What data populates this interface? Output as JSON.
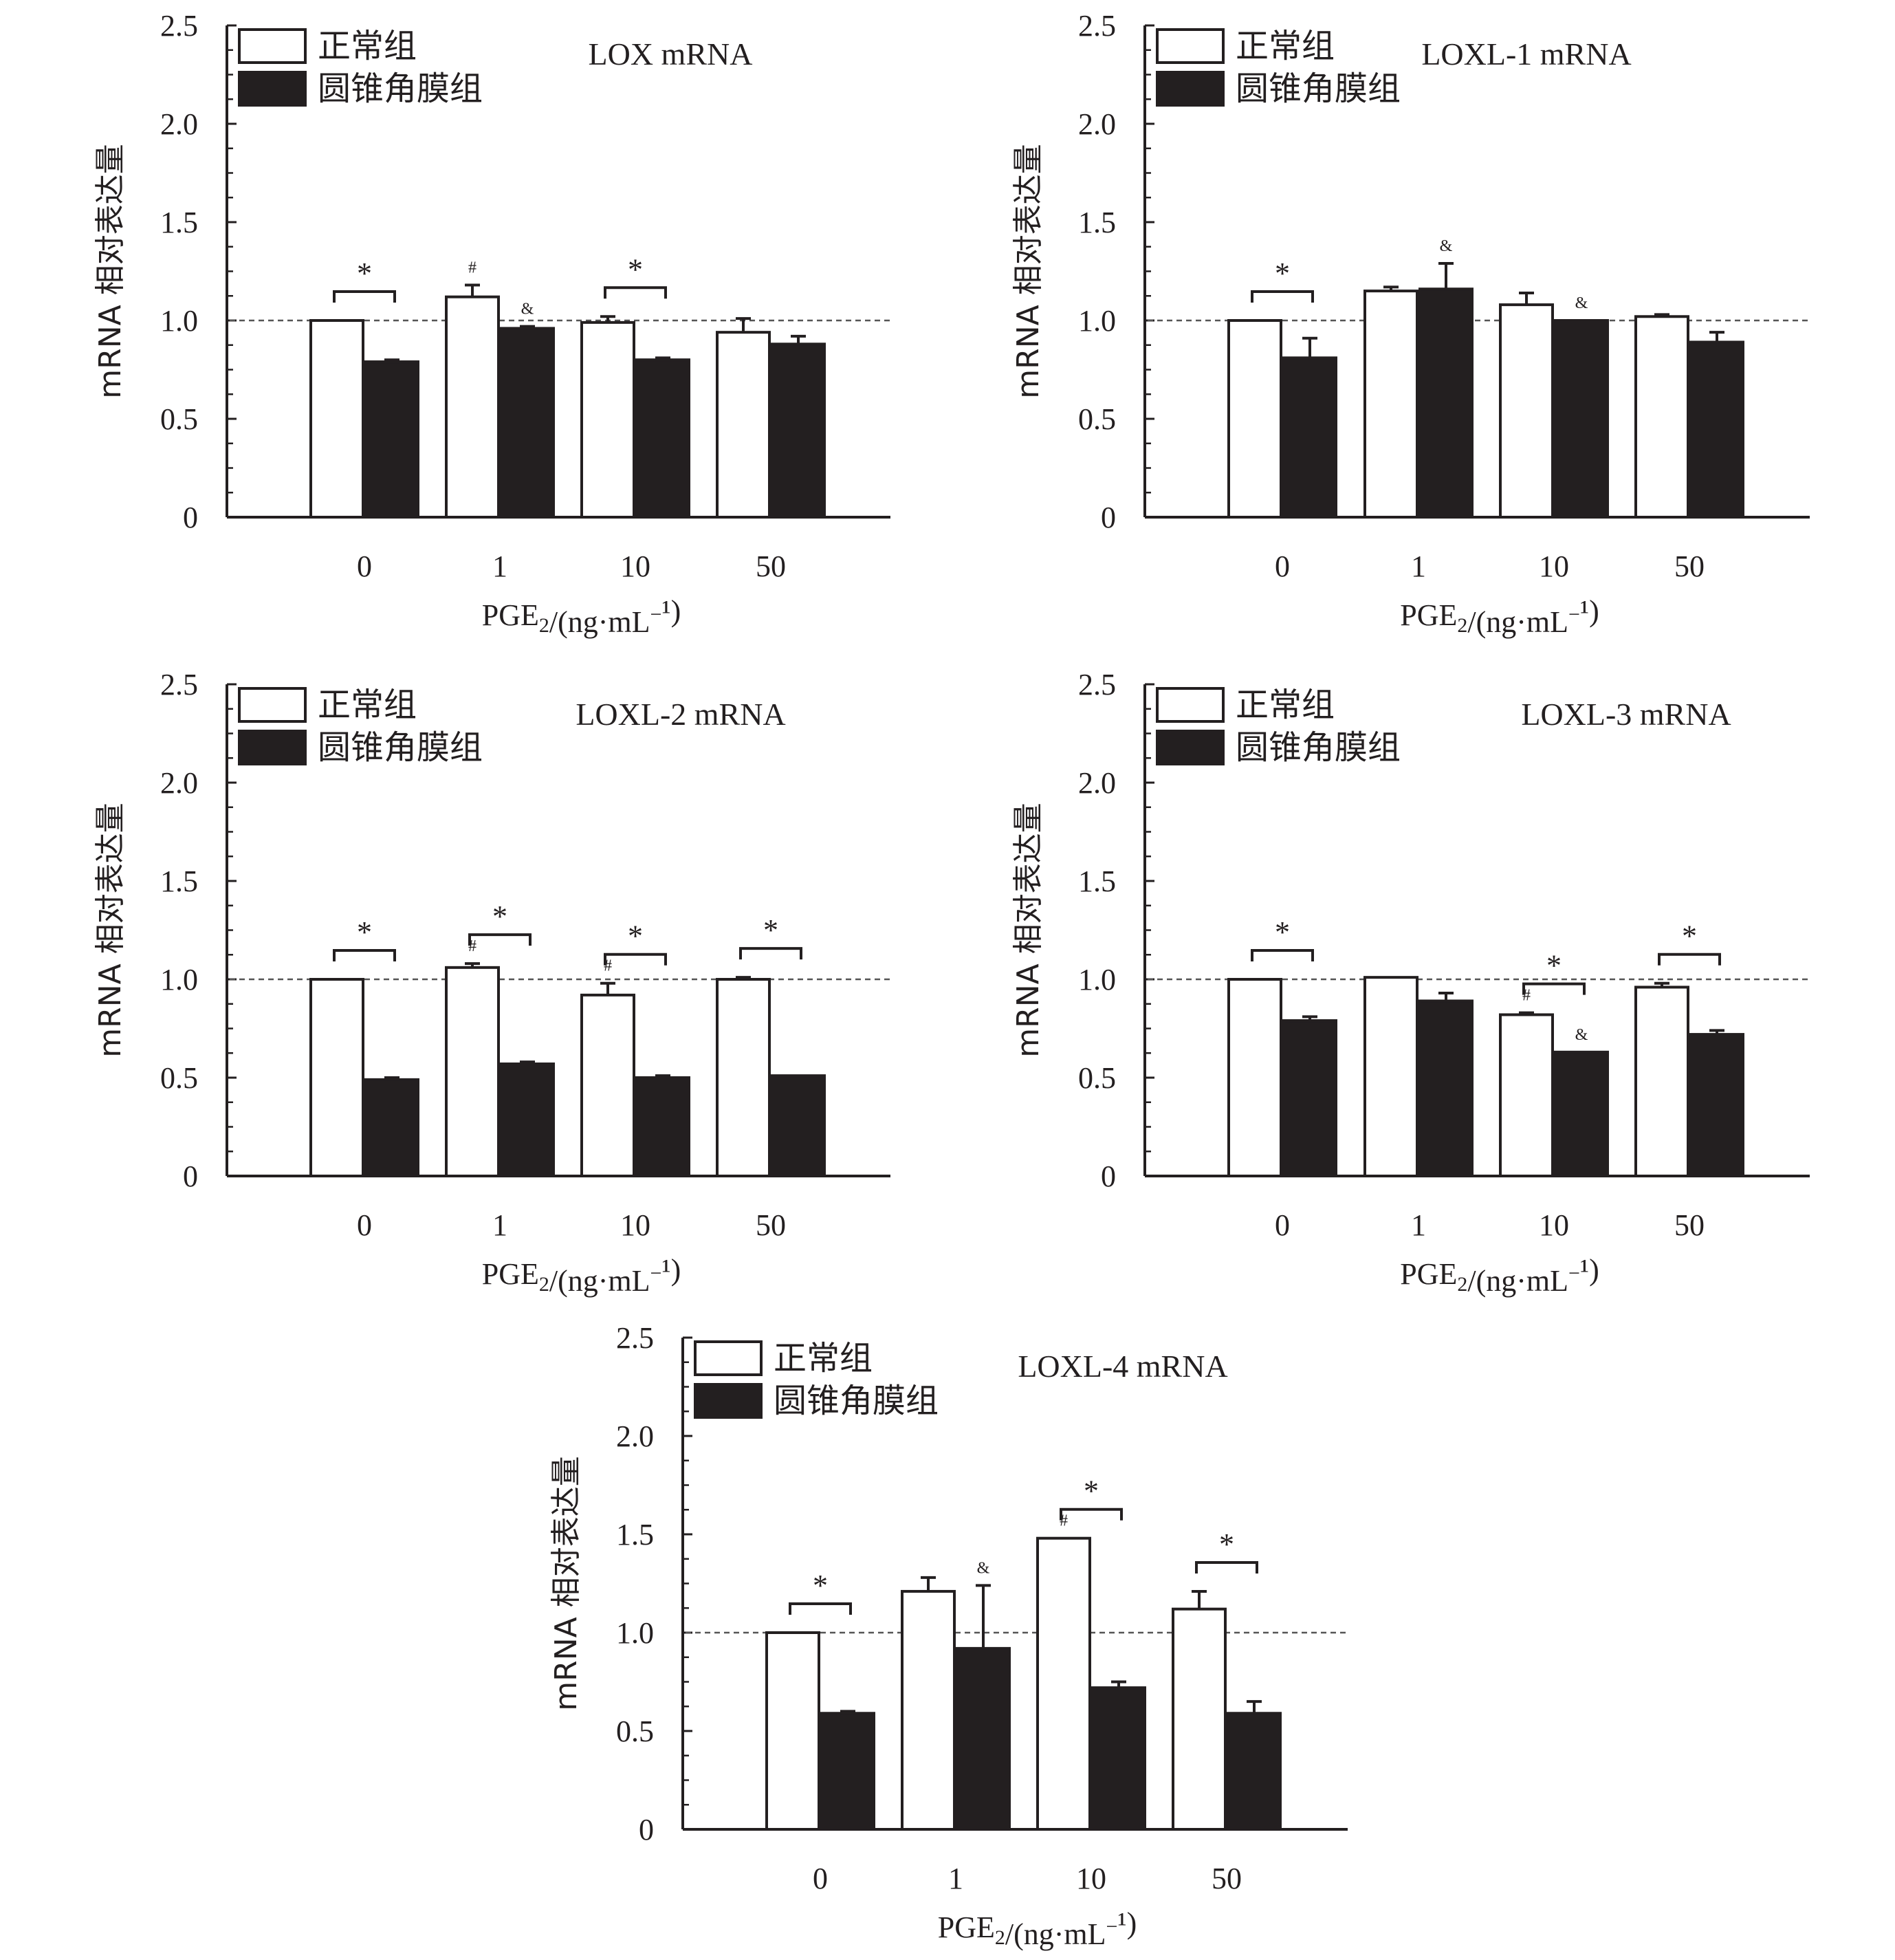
{
  "chart_data": [
    {
      "type": "bar",
      "title": "LOX mRNA",
      "xlabel": "PGE₂/(ng·mL⁻¹)",
      "ylabel": "mRNA 相对表达量",
      "categories": [
        "0",
        "1",
        "10",
        "50"
      ],
      "ylim": [
        0,
        2.5
      ],
      "yticks": [
        "0",
        "0.5",
        "1.0",
        "1.5",
        "2.0",
        "2.5"
      ],
      "reference_line": 1.0,
      "legend": [
        "正常组",
        "圆锥角膜组"
      ],
      "legend_position": "top-left",
      "series": [
        {
          "name": "正常组",
          "color": "#ffffff",
          "values": [
            1.0,
            1.12,
            0.99,
            0.94
          ],
          "errors": [
            0.0,
            0.06,
            0.03,
            0.07
          ]
        },
        {
          "name": "圆锥角膜组",
          "color": "#231f20",
          "values": [
            0.79,
            0.96,
            0.8,
            0.88
          ],
          "errors": [
            0.01,
            0.01,
            0.01,
            0.04
          ]
        }
      ],
      "significance": [
        {
          "group": 0,
          "symbol": "*"
        },
        {
          "group": 2,
          "symbol": "*"
        }
      ],
      "bar_marks": [
        {
          "group": 1,
          "series": 0,
          "symbol": "#"
        },
        {
          "group": 1,
          "series": 1,
          "symbol": "&"
        }
      ]
    },
    {
      "type": "bar",
      "title": "LOXL-1 mRNA",
      "xlabel": "PGE₂/(ng·mL⁻¹)",
      "ylabel": "mRNA 相对表达量",
      "categories": [
        "0",
        "1",
        "10",
        "50"
      ],
      "ylim": [
        0,
        2.5
      ],
      "yticks": [
        "0",
        "0.5",
        "1.0",
        "1.5",
        "2.0",
        "2.5"
      ],
      "reference_line": 1.0,
      "legend": [
        "正常组",
        "圆锥角膜组"
      ],
      "legend_position": "top-left",
      "series": [
        {
          "name": "正常组",
          "color": "#ffffff",
          "values": [
            1.0,
            1.15,
            1.08,
            1.02
          ],
          "errors": [
            0.0,
            0.02,
            0.06,
            0.01
          ]
        },
        {
          "name": "圆锥角膜组",
          "color": "#231f20",
          "values": [
            0.81,
            1.16,
            1.0,
            0.89
          ],
          "errors": [
            0.1,
            0.13,
            0.0,
            0.05
          ]
        }
      ],
      "significance": [
        {
          "group": 0,
          "symbol": "*"
        }
      ],
      "bar_marks": [
        {
          "group": 1,
          "series": 1,
          "symbol": "&"
        },
        {
          "group": 2,
          "series": 1,
          "symbol": "&"
        }
      ]
    },
    {
      "type": "bar",
      "title": "LOXL-2 mRNA",
      "xlabel": "PGE₂/(ng·mL⁻¹)",
      "ylabel": "mRNA 相对表达量",
      "categories": [
        "0",
        "1",
        "10",
        "50"
      ],
      "ylim": [
        0,
        2.5
      ],
      "yticks": [
        "0",
        "0.5",
        "1.0",
        "1.5",
        "2.0",
        "2.5"
      ],
      "reference_line": 1.0,
      "legend": [
        "正常组",
        "圆锥角膜组"
      ],
      "legend_position": "top-left",
      "series": [
        {
          "name": "正常组",
          "color": "#ffffff",
          "values": [
            1.0,
            1.06,
            0.92,
            1.0
          ],
          "errors": [
            0.0,
            0.02,
            0.06,
            0.01
          ]
        },
        {
          "name": "圆锥角膜组",
          "color": "#231f20",
          "values": [
            0.49,
            0.57,
            0.5,
            0.51
          ],
          "errors": [
            0.01,
            0.01,
            0.01,
            0.0
          ]
        }
      ],
      "significance": [
        {
          "group": 0,
          "symbol": "*"
        },
        {
          "group": 1,
          "symbol": "*"
        },
        {
          "group": 2,
          "symbol": "*"
        },
        {
          "group": 3,
          "symbol": "*"
        }
      ],
      "bar_marks": [
        {
          "group": 1,
          "series": 0,
          "symbol": "#"
        },
        {
          "group": 2,
          "series": 0,
          "symbol": "#"
        }
      ]
    },
    {
      "type": "bar",
      "title": "LOXL-3 mRNA",
      "xlabel": "PGE₂/(ng·mL⁻¹)",
      "ylabel": "mRNA 相对表达量",
      "categories": [
        "0",
        "1",
        "10",
        "50"
      ],
      "ylim": [
        0,
        2.5
      ],
      "yticks": [
        "0",
        "0.5",
        "1.0",
        "1.5",
        "2.0",
        "2.5"
      ],
      "reference_line": 1.0,
      "legend": [
        "正常组",
        "圆锥角膜组"
      ],
      "legend_position": "top-left",
      "series": [
        {
          "name": "正常组",
          "color": "#ffffff",
          "values": [
            1.0,
            1.01,
            0.82,
            0.96
          ],
          "errors": [
            0.0,
            0.0,
            0.01,
            0.02
          ]
        },
        {
          "name": "圆锥角膜组",
          "color": "#231f20",
          "values": [
            0.79,
            0.89,
            0.63,
            0.72
          ],
          "errors": [
            0.02,
            0.04,
            0.0,
            0.02
          ]
        }
      ],
      "significance": [
        {
          "group": 0,
          "symbol": "*"
        },
        {
          "group": 2,
          "symbol": "*"
        },
        {
          "group": 3,
          "symbol": "*"
        }
      ],
      "bar_marks": [
        {
          "group": 2,
          "series": 0,
          "symbol": "#"
        },
        {
          "group": 2,
          "series": 1,
          "symbol": "&"
        }
      ]
    },
    {
      "type": "bar",
      "title": "LOXL-4 mRNA",
      "xlabel": "PGE₂/(ng·mL⁻¹)",
      "ylabel": "mRNA 相对表达量",
      "categories": [
        "0",
        "1",
        "10",
        "50"
      ],
      "ylim": [
        0,
        2.5
      ],
      "yticks": [
        "0",
        "0.5",
        "1.0",
        "1.5",
        "2.0",
        "2.5"
      ],
      "reference_line": 1.0,
      "legend": [
        "正常组",
        "圆锥角膜组"
      ],
      "legend_position": "top-left",
      "series": [
        {
          "name": "正常组",
          "color": "#ffffff",
          "values": [
            1.0,
            1.21,
            1.48,
            1.12
          ],
          "errors": [
            0.0,
            0.07,
            0.0,
            0.09
          ]
        },
        {
          "name": "圆锥角膜组",
          "color": "#231f20",
          "values": [
            0.59,
            0.92,
            0.72,
            0.59
          ],
          "errors": [
            0.01,
            0.32,
            0.03,
            0.06
          ]
        }
      ],
      "significance": [
        {
          "group": 0,
          "symbol": "*"
        },
        {
          "group": 2,
          "symbol": "*"
        },
        {
          "group": 3,
          "symbol": "*"
        }
      ],
      "bar_marks": [
        {
          "group": 2,
          "series": 0,
          "symbol": "#"
        },
        {
          "group": 1,
          "series": 1,
          "symbol": "&"
        }
      ]
    }
  ]
}
